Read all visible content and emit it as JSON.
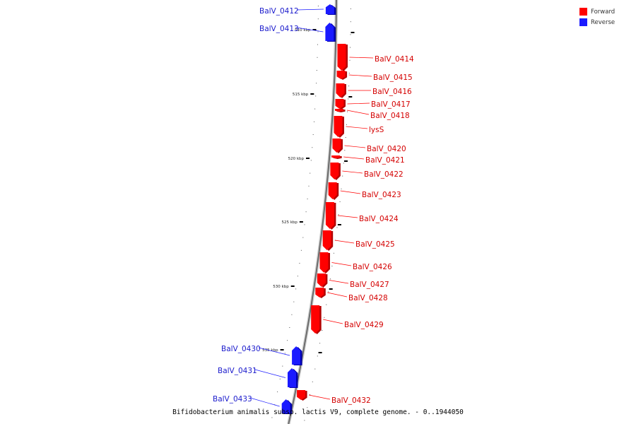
{
  "legend": {
    "forward_label": "Forward",
    "reverse_label": "Reverse",
    "forward_color": "#ff0000",
    "reverse_color": "#1a1aff"
  },
  "caption": "Bifidobacterium animalis subsp. lactis V9, complete genome. - 0..1944050",
  "axis": {
    "ticks": [
      {
        "kbp": 510,
        "label": "510 kbp"
      },
      {
        "kbp": 515,
        "label": "515 kbp"
      },
      {
        "kbp": 520,
        "label": "520 kbp"
      },
      {
        "kbp": 525,
        "label": "525 kbp"
      },
      {
        "kbp": 530,
        "label": "530 kbp"
      },
      {
        "kbp": 535,
        "label": "535 kbp"
      }
    ]
  },
  "genes": [
    {
      "name": "BalV_0412",
      "strand": "reverse"
    },
    {
      "name": "BalV_0413",
      "strand": "reverse"
    },
    {
      "name": "BalV_0414",
      "strand": "forward"
    },
    {
      "name": "BalV_0415",
      "strand": "forward"
    },
    {
      "name": "BalV_0416",
      "strand": "forward"
    },
    {
      "name": "BalV_0417",
      "strand": "forward"
    },
    {
      "name": "BalV_0418",
      "strand": "forward"
    },
    {
      "name": "lysS",
      "strand": "forward"
    },
    {
      "name": "BalV_0420",
      "strand": "forward"
    },
    {
      "name": "BalV_0421",
      "strand": "forward"
    },
    {
      "name": "BalV_0422",
      "strand": "forward"
    },
    {
      "name": "BalV_0423",
      "strand": "forward"
    },
    {
      "name": "BalV_0424",
      "strand": "forward"
    },
    {
      "name": "BalV_0425",
      "strand": "forward"
    },
    {
      "name": "BalV_0426",
      "strand": "forward"
    },
    {
      "name": "BalV_0427",
      "strand": "forward"
    },
    {
      "name": "BalV_0428",
      "strand": "forward"
    },
    {
      "name": "BalV_0429",
      "strand": "forward"
    },
    {
      "name": "BalV_0430",
      "strand": "reverse"
    },
    {
      "name": "BalV_0431",
      "strand": "reverse"
    },
    {
      "name": "BalV_0432",
      "strand": "forward"
    },
    {
      "name": "BalV_0433",
      "strand": "reverse"
    }
  ]
}
